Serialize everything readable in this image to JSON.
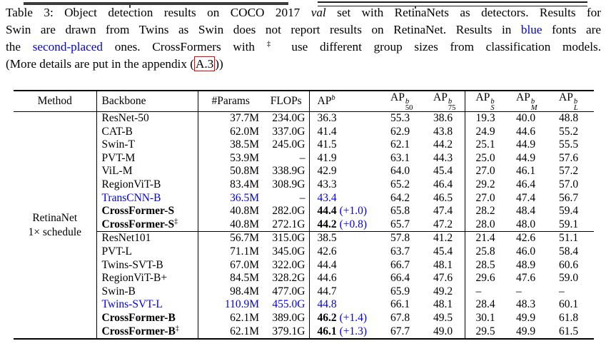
{
  "colors": {
    "blue": "#0000EE",
    "link_border_red": "#EE0000",
    "rule_black": "#000000"
  },
  "caption": {
    "lines": [
      {
        "segments": [
          {
            "text": "Table 3: Object detection results on COCO 2017 ",
            "style": "plain"
          },
          {
            "text": "val",
            "style": "italic"
          },
          {
            "text": " set with RetinaNets as detectors. Results for",
            "style": "plain"
          }
        ]
      },
      {
        "segments": [
          {
            "text": "Swin are drawn from Twins as Swin does not report results on RetinaNet. Results in ",
            "style": "plain"
          },
          {
            "text": "blue",
            "style": "blue"
          },
          {
            "text": " fonts are",
            "style": "plain"
          }
        ]
      },
      {
        "segments": [
          {
            "text": "the ",
            "style": "plain"
          },
          {
            "text": "second-placed",
            "style": "blue"
          },
          {
            "text": " ones. CrossFormers with ",
            "style": "plain"
          },
          {
            "text": "‡",
            "style": "sup"
          },
          {
            "text": " use different group sizes from classification models.",
            "style": "plain"
          }
        ]
      },
      {
        "segments": [
          {
            "text": "(More details are put in the appendix (",
            "style": "plain"
          },
          {
            "text": "A.3",
            "style": "linkbox"
          },
          {
            "text": "))",
            "style": "plain"
          }
        ]
      }
    ]
  },
  "table": {
    "dagger_symbol": "‡",
    "method": {
      "lines": [
        "RetinaNet",
        "1× schedule"
      ]
    },
    "columns": [
      {
        "key": "method",
        "label": {
          "base": "Method"
        }
      },
      {
        "key": "backbone",
        "label": {
          "base": "Backbone"
        }
      },
      {
        "key": "params",
        "label": {
          "base": "#Params"
        }
      },
      {
        "key": "flops",
        "label": {
          "base": "FLOPs"
        }
      },
      {
        "key": "ap",
        "label": {
          "base": "AP",
          "sup": "b"
        }
      },
      {
        "key": "ap50",
        "label": {
          "base": "AP",
          "sup": "b",
          "sub": "50"
        }
      },
      {
        "key": "ap75",
        "label": {
          "base": "AP",
          "sup": "b",
          "sub": "75"
        }
      },
      {
        "key": "aps",
        "label": {
          "base": "AP",
          "sup": "b",
          "sub": "S",
          "sub_italic": true
        }
      },
      {
        "key": "apm",
        "label": {
          "base": "AP",
          "sup": "b",
          "sub": "M",
          "sub_italic": true
        }
      },
      {
        "key": "apl",
        "label": {
          "base": "AP",
          "sup": "b",
          "sub": "L",
          "sub_italic": true
        }
      }
    ],
    "groups": [
      {
        "rows": [
          {
            "backbone": {
              "text": "ResNet-50"
            },
            "params": {
              "text": "37.7M"
            },
            "flops": {
              "text": "234.0G"
            },
            "ap": {
              "text": "36.3"
            },
            "ap50": "55.3",
            "ap75": "38.6",
            "aps": "19.3",
            "apm": "40.0",
            "apl": "48.8"
          },
          {
            "backbone": {
              "text": "CAT-B"
            },
            "params": {
              "text": "62.0M"
            },
            "flops": {
              "text": "337.0G"
            },
            "ap": {
              "text": "41.4"
            },
            "ap50": "62.9",
            "ap75": "43.8",
            "aps": "24.9",
            "apm": "44.6",
            "apl": "55.2"
          },
          {
            "backbone": {
              "text": "Swin-T"
            },
            "params": {
              "text": "38.5M"
            },
            "flops": {
              "text": "245.0G"
            },
            "ap": {
              "text": "41.5"
            },
            "ap50": "62.1",
            "ap75": "44.2",
            "aps": "25.1",
            "apm": "44.9",
            "apl": "55.5"
          },
          {
            "backbone": {
              "text": "PVT-M"
            },
            "params": {
              "text": "53.9M"
            },
            "flops": {
              "text": "–"
            },
            "ap": {
              "text": "41.9"
            },
            "ap50": "63.1",
            "ap75": "44.3",
            "aps": "25.0",
            "apm": "44.9",
            "apl": "57.6"
          },
          {
            "backbone": {
              "text": "ViL-M"
            },
            "params": {
              "text": "50.8M"
            },
            "flops": {
              "text": "338.9G"
            },
            "ap": {
              "text": "42.9"
            },
            "ap50": "64.0",
            "ap75": "45.4",
            "aps": "27.0",
            "apm": "46.1",
            "apl": "57.2"
          },
          {
            "backbone": {
              "text": "RegionViT-B"
            },
            "params": {
              "text": "83.4M"
            },
            "flops": {
              "text": "308.9G"
            },
            "ap": {
              "text": "43.3"
            },
            "ap50": "65.2",
            "ap75": "46.4",
            "aps": "29.2",
            "apm": "46.4",
            "apl": "57.0"
          },
          {
            "backbone": {
              "text": "TransCNN-B",
              "blue": true
            },
            "params": {
              "text": "36.5M",
              "blue": true
            },
            "flops": {
              "text": "–"
            },
            "ap": {
              "text": "43.4",
              "blue": true
            },
            "ap50": "64.2",
            "ap75": "46.5",
            "aps": "27.0",
            "apm": "47.4",
            "apl": "56.7"
          },
          {
            "backbone": {
              "text": "CrossFormer-S",
              "bold": true
            },
            "params": {
              "text": "40.8M"
            },
            "flops": {
              "text": "282.0G"
            },
            "ap": {
              "text": "44.4",
              "bold": true,
              "bonus": "(+1.0)"
            },
            "ap50": "65.8",
            "ap75": "47.4",
            "aps": "28.2",
            "apm": "48.4",
            "apl": "59.4"
          },
          {
            "backbone": {
              "text": "CrossFormer-S",
              "bold": true,
              "dagger": true
            },
            "params": {
              "text": "40.8M"
            },
            "flops": {
              "text": "272.1G"
            },
            "ap": {
              "text": "44.2",
              "bold": true,
              "bonus": "(+0.8)"
            },
            "ap50": "65.7",
            "ap75": "47.2",
            "aps": "28.0",
            "apm": "48.0",
            "apl": "59.1"
          }
        ]
      },
      {
        "rows": [
          {
            "backbone": {
              "text": "ResNet101"
            },
            "params": {
              "text": "56.7M"
            },
            "flops": {
              "text": "315.0G"
            },
            "ap": {
              "text": "38.5"
            },
            "ap50": "57.8",
            "ap75": "41.2",
            "aps": "21.4",
            "apm": "42.6",
            "apl": "51.1"
          },
          {
            "backbone": {
              "text": "PVT-L"
            },
            "params": {
              "text": "71.1M"
            },
            "flops": {
              "text": "345.0G"
            },
            "ap": {
              "text": "42.6"
            },
            "ap50": "63.7",
            "ap75": "45.4",
            "aps": "25.8",
            "apm": "46.0",
            "apl": "58.4"
          },
          {
            "backbone": {
              "text": "Twins-SVT-B"
            },
            "params": {
              "text": "67.0M"
            },
            "flops": {
              "text": "322.0G"
            },
            "ap": {
              "text": "44.4"
            },
            "ap50": "66.7",
            "ap75": "48.1",
            "aps": "28.5",
            "apm": "48.9",
            "apl": "60.6"
          },
          {
            "backbone": {
              "text": "RegionViT-B+"
            },
            "params": {
              "text": "84.5M"
            },
            "flops": {
              "text": "328.2G"
            },
            "ap": {
              "text": "44.6"
            },
            "ap50": "66.4",
            "ap75": "47.6",
            "aps": "29.6",
            "apm": "47.6",
            "apl": "59.0"
          },
          {
            "backbone": {
              "text": "Swin-B"
            },
            "params": {
              "text": "98.4M"
            },
            "flops": {
              "text": "477.0G"
            },
            "ap": {
              "text": "44.7"
            },
            "ap50": "65.9",
            "ap75": "49.2",
            "aps": "–",
            "apm": "–",
            "apl": "–"
          },
          {
            "backbone": {
              "text": "Twins-SVT-L",
              "blue": true
            },
            "params": {
              "text": "110.9M",
              "blue": true
            },
            "flops": {
              "text": "455.0G",
              "blue": true
            },
            "ap": {
              "text": "44.8",
              "blue": true
            },
            "ap50": "66.1",
            "ap75": "48.1",
            "aps": "28.4",
            "apm": "48.3",
            "apl": "60.1"
          },
          {
            "backbone": {
              "text": "CrossFormer-B",
              "bold": true
            },
            "params": {
              "text": "62.1M"
            },
            "flops": {
              "text": "389.0G"
            },
            "ap": {
              "text": "46.2",
              "bold": true,
              "bonus": "(+1.4)"
            },
            "ap50": "67.8",
            "ap75": "49.5",
            "aps": "30.1",
            "apm": "49.9",
            "apl": "61.8"
          },
          {
            "backbone": {
              "text": "CrossFormer-B",
              "bold": true,
              "dagger": true
            },
            "params": {
              "text": "62.1M"
            },
            "flops": {
              "text": "379.1G"
            },
            "ap": {
              "text": "46.1",
              "bold": true,
              "bonus": "(+1.3)"
            },
            "ap50": "67.7",
            "ap75": "49.0",
            "aps": "29.5",
            "apm": "49.9",
            "apl": "61.5"
          }
        ]
      }
    ]
  }
}
